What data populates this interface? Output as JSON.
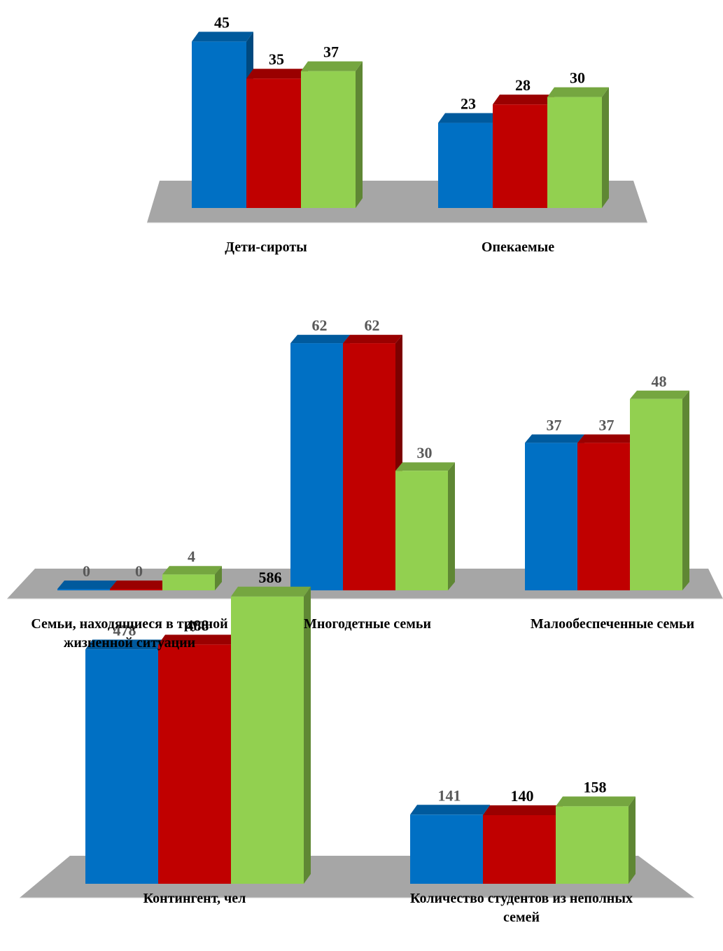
{
  "colors": {
    "series1": "#0070c4",
    "series2": "#c00000",
    "series3": "#92d050",
    "floor": "#a6a6a6"
  },
  "chart_data": [
    {
      "type": "bar",
      "categories": [
        "Дети-сироты",
        "Опекаемые"
      ],
      "series": [
        {
          "values": [
            45,
            23
          ]
        },
        {
          "values": [
            35,
            28
          ]
        },
        {
          "values": [
            37,
            30
          ]
        }
      ],
      "ylim": [
        0,
        50
      ],
      "grid": false,
      "legend": "none",
      "label_colors": [
        "#000000",
        "#000000",
        "#000000"
      ]
    },
    {
      "type": "bar",
      "categories": [
        "Семьи, находящиеся в трудной жизненной ситуации",
        "Многодетные семьи",
        "Малообеспеченные семьи"
      ],
      "series": [
        {
          "values": [
            0,
            62,
            37
          ]
        },
        {
          "values": [
            0,
            62,
            37
          ]
        },
        {
          "values": [
            4,
            30,
            48
          ]
        }
      ],
      "ylim": [
        0,
        65
      ],
      "grid": false,
      "legend": "none",
      "label_colors": [
        "#595959",
        "#595959",
        "#595959"
      ]
    },
    {
      "type": "bar",
      "categories": [
        "Контингент, чел",
        "Количество студентов из неполных семей"
      ],
      "series": [
        {
          "values": [
            478,
            141
          ]
        },
        {
          "values": [
            488,
            140
          ]
        },
        {
          "values": [
            586,
            158
          ]
        }
      ],
      "ylim": [
        0,
        600
      ],
      "grid": false,
      "legend": "none",
      "label_colors": [
        "#595959",
        "#000000",
        "#000000"
      ]
    }
  ]
}
